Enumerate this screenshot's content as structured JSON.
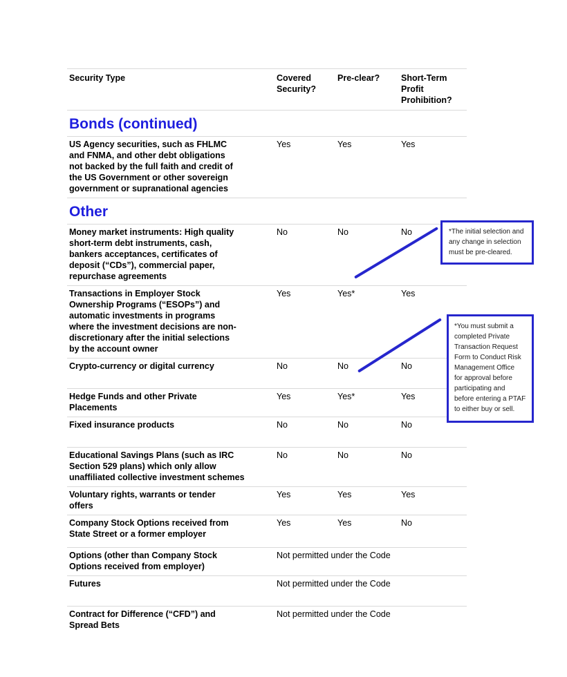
{
  "colors": {
    "heading_blue": "#1e1ede",
    "callout_blue": "#2626cd",
    "divider_gray": "#d9d9d9",
    "text": "#000000"
  },
  "table": {
    "header": {
      "security_type": "Security Type",
      "covered": "Covered\nSecurity?",
      "preclear": "Pre-clear?",
      "short_term": "Short-Term\nProfit\nProhibition?"
    },
    "section_bonds": "Bonds (continued)",
    "section_other": "Other",
    "rows": [
      {
        "name": "US Agency securities, such as FHLMC\nand FNMA, and other debt obligations\nnot backed by the full faith and credit of\nthe US Government or other sovereign\ngovernment or supranational agencies",
        "covered": "Yes",
        "preclear": "Yes",
        "short_term": "Yes"
      },
      {
        "name": "Money market instruments: High quality\nshort-term debt instruments, cash,\nbankers acceptances, certificates of\ndeposit (“CDs”), commercial paper,\nrepurchase agreements",
        "covered": "No",
        "preclear": "No",
        "short_term": "No"
      },
      {
        "name": "Transactions in Employer Stock\nOwnership Programs (“ESOPs”) and\nautomatic investments in programs\nwhere the investment decisions are non-\ndiscretionary after the initial selections\nby the account owner",
        "covered": "Yes",
        "preclear": "Yes*",
        "short_term": "Yes"
      },
      {
        "name": "Crypto-currency or digital currency",
        "covered": "No",
        "preclear": "No",
        "short_term": "No"
      },
      {
        "name": "Hedge Funds and other Private\nPlacements",
        "covered": "Yes",
        "preclear": "Yes*",
        "short_term": "Yes"
      },
      {
        "name": "Fixed insurance products",
        "covered": "No",
        "preclear": "No",
        "short_term": "No"
      },
      {
        "name": "Educational Savings Plans (such as IRC\nSection 529 plans) which only allow\nunaffiliated collective investment schemes",
        "covered": "No",
        "preclear": "No",
        "short_term": "No"
      },
      {
        "name": "Voluntary rights, warrants or tender\noffers",
        "covered": "Yes",
        "preclear": "Yes",
        "short_term": "Yes"
      },
      {
        "name": "Company Stock Options received from\nState Street or a former employer",
        "covered": "Yes",
        "preclear": "Yes",
        "short_term": "No"
      },
      {
        "name": "Options (other than Company Stock\nOptions received from employer)",
        "span": "Not permitted under the Code"
      },
      {
        "name": "Futures",
        "span": "Not permitted under the Code"
      },
      {
        "name": "Contract for Difference (“CFD”) and\nSpread Bets",
        "span": "Not permitted under the Code"
      }
    ]
  },
  "callouts": {
    "preclear_note": "*The initial selection and\nany change in selection\nmust be pre-cleared.",
    "ptaf_note": "*You must submit a\ncompleted Private\nTransaction Request\nForm to Conduct Risk\nManagement Office\nfor approval before\nparticipating and\nbefore entering a PTAF\nto either buy or sell."
  }
}
